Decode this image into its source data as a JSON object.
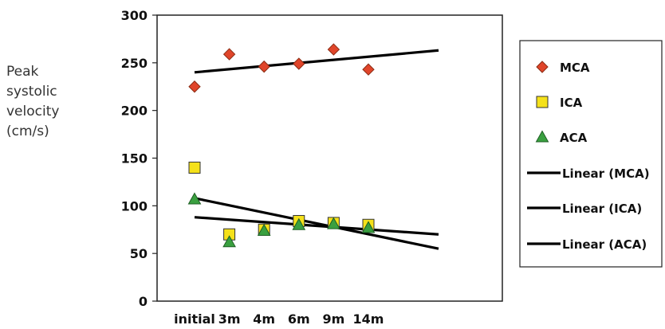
{
  "chart_data": {
    "type": "scatter",
    "title": "",
    "ylabel_lines": [
      "Peak",
      "systolic",
      "velocity",
      "(cm/s)"
    ],
    "xlabel": "",
    "categories": [
      "initial",
      "3m",
      "4m",
      "6m",
      "9m",
      "14m"
    ],
    "ylim": [
      0,
      300
    ],
    "yticks": [
      0,
      50,
      100,
      150,
      200,
      250,
      300
    ],
    "grid": false,
    "legend_position": "right",
    "series": [
      {
        "name": "MCA",
        "marker": "diamond",
        "color": "#e0452a",
        "values": [
          225,
          259,
          246,
          249,
          264,
          243
        ]
      },
      {
        "name": "ICA",
        "marker": "square",
        "color": "#f5e11a",
        "values": [
          140,
          70,
          75,
          84,
          82,
          80
        ]
      },
      {
        "name": "ACA",
        "marker": "triangle",
        "color": "#3aa040",
        "values": [
          107,
          62,
          74,
          80,
          81,
          77
        ]
      }
    ],
    "trendlines": [
      {
        "name": "Linear (MCA)",
        "color": "#000000",
        "start": 240,
        "end": 263
      },
      {
        "name": "Linear (ICA)",
        "color": "#000000",
        "start": 88,
        "end": 70
      },
      {
        "name": "Linear (ACA)",
        "color": "#000000",
        "start": 108,
        "end": 55
      }
    ]
  }
}
